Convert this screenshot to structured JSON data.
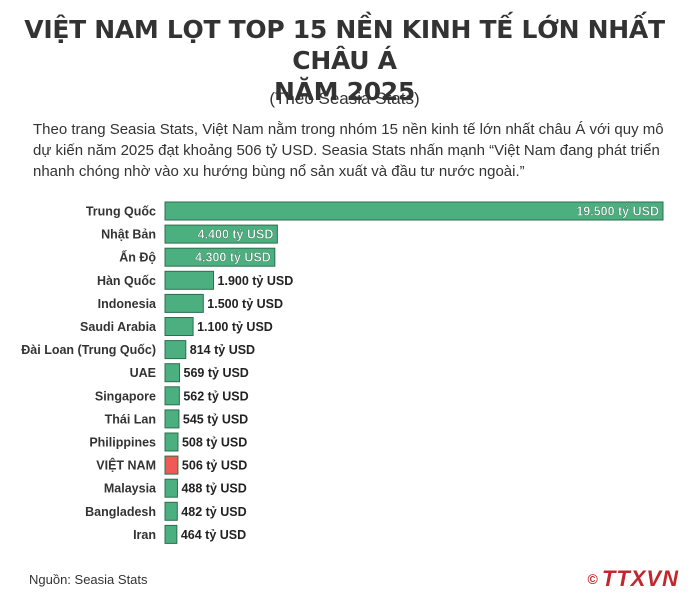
{
  "title_line1": "VIỆT NAM LỌT TOP 15 NỀN KINH TẾ LỚN NHẤT CHÂU Á",
  "title_line2": "NĂM 2025",
  "subtitle": "(Theo Seasia Stats)",
  "intro": "Theo trang Seasia Stats, Việt Nam nằm trong nhóm 15 nền kinh tế lớn nhất châu Á với quy mô dự kiến năm 2025 đạt khoảng 506 tỷ USD. Seasia Stats nhấn mạnh “Việt Nam đang phát triển nhanh chóng nhờ vào xu hướng bùng nổ sản xuất và đầu tư nước ngoài.”",
  "source": "Nguồn: Seasia Stats",
  "logo": {
    "symbol": "©",
    "text": "TTXVN"
  },
  "colors": {
    "bar": "#4caf7f",
    "bar_border": "#2d6e4f",
    "highlight": "#f05a55",
    "logo": "#c0282e"
  },
  "chart_data": {
    "type": "bar",
    "orientation": "horizontal",
    "unit": "tỷ USD",
    "categories": [
      "Trung Quốc",
      "Nhật Bản",
      "Ấn Độ",
      "Hàn Quốc",
      "Indonesia",
      "Saudi Arabia",
      "Đài Loan (Trung Quốc)",
      "UAE",
      "Singapore",
      "Thái Lan",
      "Philippines",
      "VIỆT NAM",
      "Malaysia",
      "Bangladesh",
      "Iran"
    ],
    "values": [
      19500,
      4400,
      4300,
      1900,
      1500,
      1100,
      814,
      569,
      562,
      545,
      508,
      506,
      488,
      482,
      464
    ],
    "labels": [
      "19.500 tỷ USD",
      "4.400 tỷ USD",
      "4.300 tỷ USD",
      "1.900 tỷ USD",
      "1.500 tỷ USD",
      "1.100 tỷ USD",
      "814 tỷ USD",
      "569 tỷ USD",
      "562 tỷ USD",
      "545 tỷ USD",
      "508 tỷ USD",
      "506 tỷ USD",
      "488 tỷ USD",
      "482 tỷ USD",
      "464 tỷ USD"
    ],
    "highlight": "VIỆT NAM",
    "xlim": [
      0,
      19500
    ],
    "grid": false,
    "legend": false
  }
}
